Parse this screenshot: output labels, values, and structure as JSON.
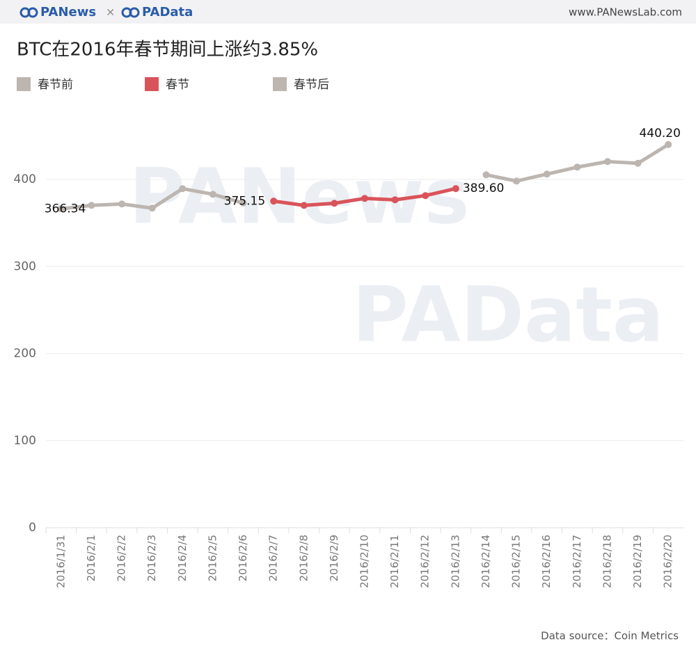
{
  "header": {
    "brand_left": "PANews",
    "separator": "×",
    "brand_right": "PAData",
    "site": "www.PANewsLab.com"
  },
  "watermarks": [
    "PANews",
    "PAData"
  ],
  "chart_data": {
    "type": "line",
    "title": "BTC在2016年春节期间上涨约3.85%",
    "categories": [
      "2016/1/31",
      "2016/2/1",
      "2016/2/2",
      "2016/2/3",
      "2016/2/4",
      "2016/2/5",
      "2016/2/6",
      "2016/2/7",
      "2016/2/8",
      "2016/2/9",
      "2016/2/10",
      "2016/2/11",
      "2016/2/12",
      "2016/2/13",
      "2016/2/14",
      "2016/2/15",
      "2016/2/16",
      "2016/2/17",
      "2016/2/18",
      "2016/2/19",
      "2016/2/20"
    ],
    "series": [
      {
        "name": "春节前",
        "color": "#bcb5b0",
        "values": [
          366.34,
          370.3,
          371.9,
          367.1,
          389.5,
          383,
          373,
          null,
          null,
          null,
          null,
          null,
          null,
          null,
          null,
          null,
          null,
          null,
          null,
          null,
          null
        ],
        "value_labels": [
          "366.34",
          null,
          null,
          null,
          null,
          null,
          null,
          null,
          null,
          null,
          null,
          null,
          null,
          null,
          null,
          null,
          null,
          null,
          null,
          null,
          null
        ]
      },
      {
        "name": "春节",
        "color": "#d9545a",
        "values": [
          null,
          null,
          null,
          null,
          null,
          null,
          null,
          375.15,
          370.3,
          372.7,
          378.3,
          376.7,
          381.5,
          389.6,
          null,
          null,
          null,
          null,
          null,
          null,
          null
        ],
        "value_labels": [
          null,
          null,
          null,
          null,
          null,
          null,
          null,
          "375.15",
          null,
          null,
          null,
          null,
          null,
          "389.60",
          null,
          null,
          null,
          null,
          null,
          null,
          null
        ]
      },
      {
        "name": "春节后",
        "color": "#bcb5b0",
        "values": [
          null,
          null,
          null,
          null,
          null,
          null,
          null,
          null,
          null,
          null,
          null,
          null,
          null,
          null,
          405.4,
          398.2,
          406.2,
          414.2,
          420.6,
          418.6,
          440.2
        ],
        "value_labels": [
          null,
          null,
          null,
          null,
          null,
          null,
          null,
          null,
          null,
          null,
          null,
          null,
          null,
          null,
          null,
          null,
          null,
          null,
          null,
          null,
          "440.20"
        ]
      }
    ],
    "ylim": [
      0,
      480
    ],
    "yticks": [
      0,
      100,
      200,
      300,
      400
    ],
    "grid": true,
    "source": "Data source：Coin Metrics"
  }
}
